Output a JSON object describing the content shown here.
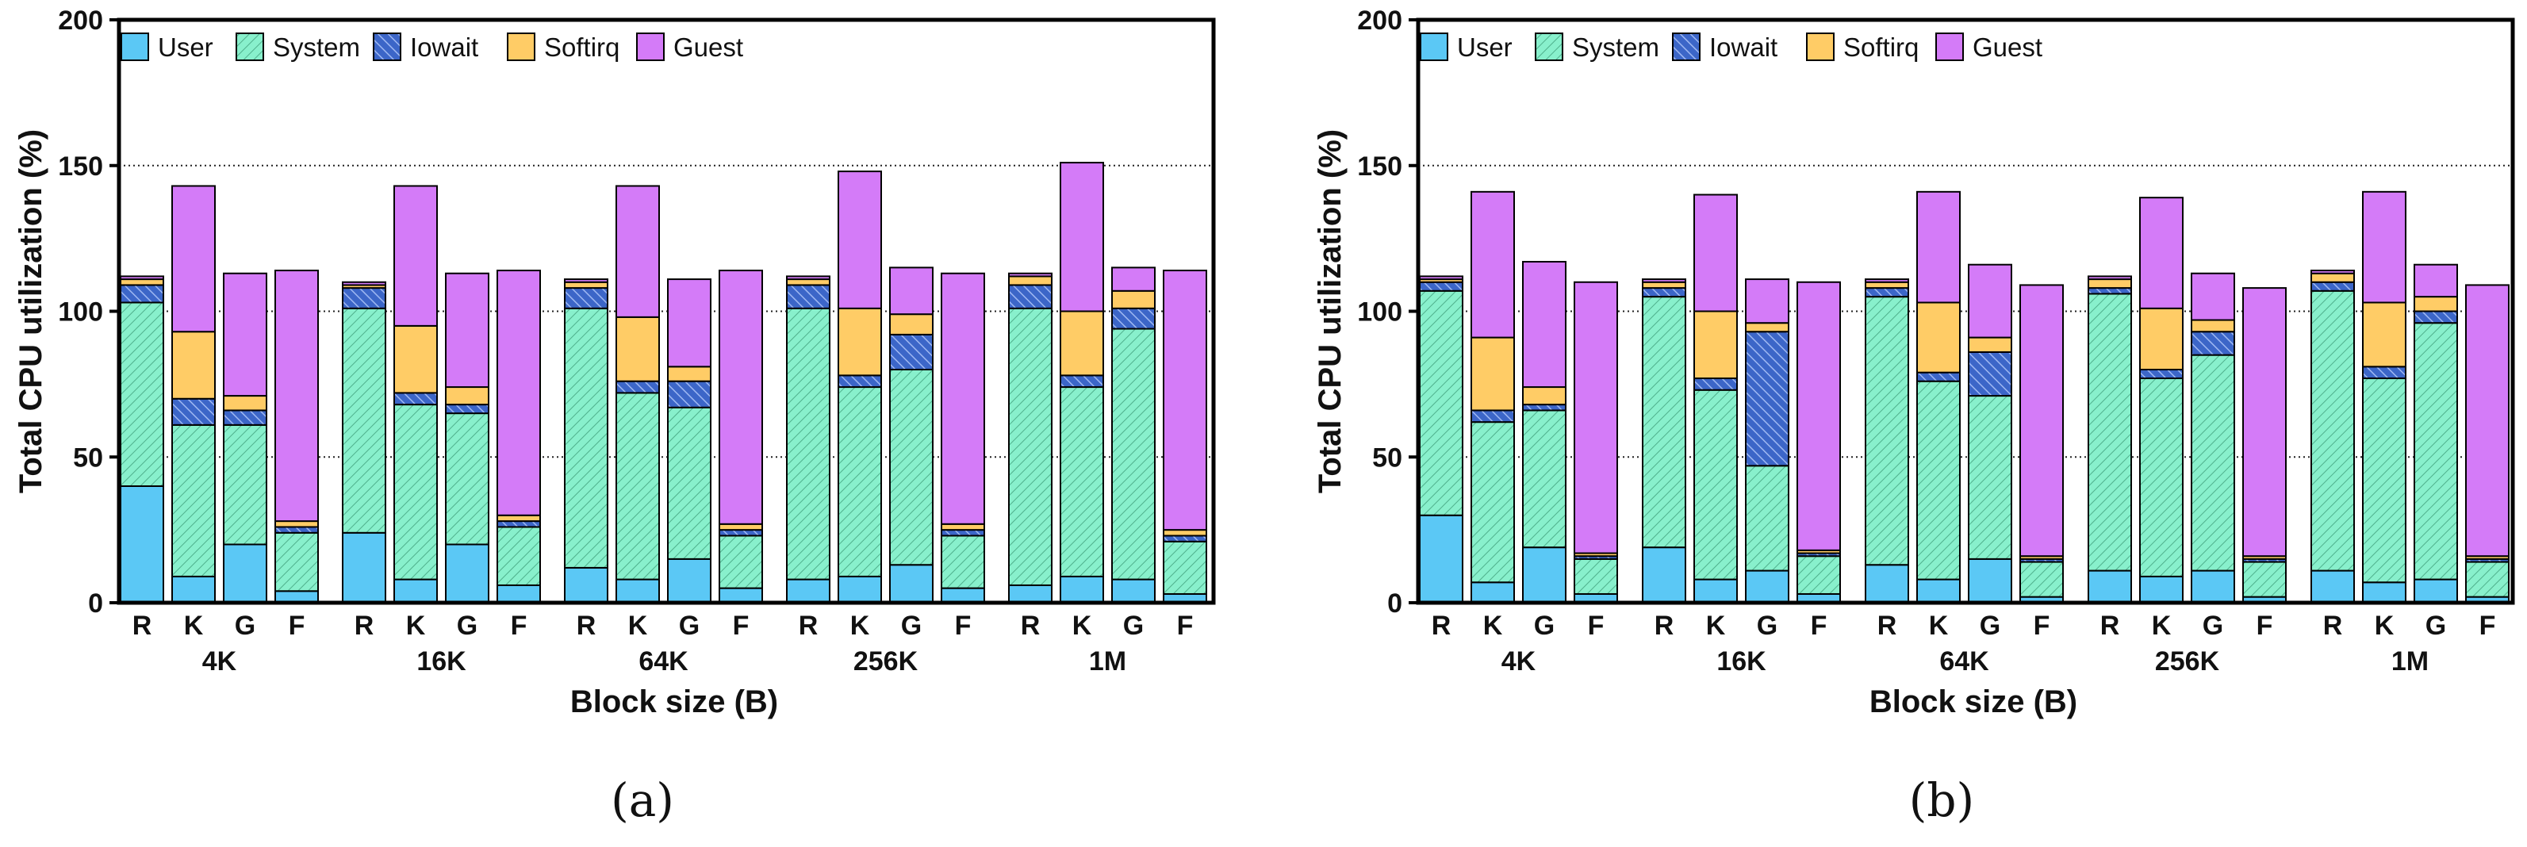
{
  "legend": [
    "User",
    "System",
    "Iowait",
    "Softirq",
    "Guest"
  ],
  "colors": {
    "User": "#5bc8f5",
    "System": "#88f0cc",
    "Iowait": "#3c66c8",
    "Softirq": "#ffcc66",
    "Guest": "#d47bf8"
  },
  "chart_data": [
    {
      "type": "bar",
      "panel_label": "(a)",
      "ylabel": "Total CPU utilization (%)",
      "xlabel": "Block size (B)",
      "ylim": [
        0,
        200
      ],
      "yticks": [
        "0",
        "50",
        "100",
        "150",
        "200"
      ],
      "groups": [
        "4K",
        "16K",
        "64K",
        "256K",
        "1M"
      ],
      "bar_labels": [
        "R",
        "K",
        "G",
        "F"
      ],
      "stacks": [
        [
          [
            40,
            63,
            6,
            2,
            1
          ],
          [
            9,
            52,
            9,
            23,
            50
          ],
          [
            20,
            41,
            5,
            5,
            42
          ],
          [
            4,
            20,
            2,
            2,
            86
          ]
        ],
        [
          [
            24,
            77,
            7,
            1,
            1
          ],
          [
            8,
            60,
            4,
            23,
            48
          ],
          [
            20,
            45,
            3,
            6,
            39
          ],
          [
            6,
            20,
            2,
            2,
            84
          ]
        ],
        [
          [
            12,
            89,
            7,
            2,
            1
          ],
          [
            8,
            64,
            4,
            22,
            45
          ],
          [
            15,
            52,
            9,
            5,
            30
          ],
          [
            5,
            18,
            2,
            2,
            87
          ]
        ],
        [
          [
            8,
            93,
            8,
            2,
            1
          ],
          [
            9,
            65,
            4,
            23,
            47
          ],
          [
            13,
            67,
            12,
            7,
            16
          ],
          [
            5,
            18,
            2,
            2,
            86
          ]
        ],
        [
          [
            6,
            95,
            8,
            3,
            1
          ],
          [
            9,
            65,
            4,
            22,
            51
          ],
          [
            8,
            86,
            7,
            6,
            8
          ],
          [
            3,
            18,
            2,
            2,
            89
          ]
        ]
      ]
    },
    {
      "type": "bar",
      "panel_label": "(b)",
      "ylabel": "Total CPU utilization (%)",
      "xlabel": "Block size (B)",
      "ylim": [
        0,
        200
      ],
      "yticks": [
        "0",
        "50",
        "100",
        "150",
        "200"
      ],
      "groups": [
        "4K",
        "16K",
        "64K",
        "256K",
        "1M"
      ],
      "bar_labels": [
        "R",
        "K",
        "G",
        "F"
      ],
      "stacks": [
        [
          [
            30,
            77,
            3,
            1,
            1
          ],
          [
            7,
            55,
            4,
            25,
            50
          ],
          [
            19,
            47,
            2,
            6,
            43
          ],
          [
            3,
            12,
            1,
            1,
            93
          ]
        ],
        [
          [
            19,
            86,
            3,
            2,
            1
          ],
          [
            8,
            65,
            4,
            23,
            40
          ],
          [
            11,
            36,
            46,
            3,
            15
          ],
          [
            3,
            13,
            1,
            1,
            92
          ]
        ],
        [
          [
            13,
            92,
            3,
            2,
            1
          ],
          [
            8,
            68,
            3,
            24,
            38
          ],
          [
            15,
            56,
            15,
            5,
            25
          ],
          [
            2,
            12,
            1,
            1,
            93
          ]
        ],
        [
          [
            11,
            95,
            2,
            3,
            1
          ],
          [
            9,
            68,
            3,
            21,
            38
          ],
          [
            11,
            74,
            8,
            4,
            16
          ],
          [
            2,
            12,
            1,
            1,
            92
          ]
        ],
        [
          [
            11,
            96,
            3,
            3,
            1
          ],
          [
            7,
            70,
            4,
            22,
            38
          ],
          [
            8,
            88,
            4,
            5,
            11
          ],
          [
            2,
            12,
            1,
            1,
            93
          ]
        ]
      ]
    }
  ]
}
